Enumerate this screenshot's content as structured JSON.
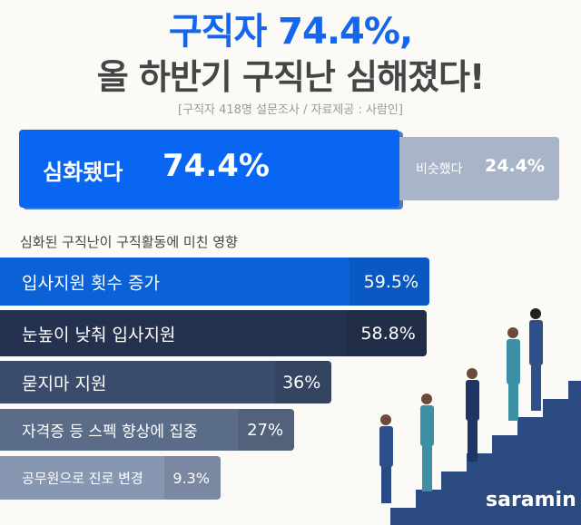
{
  "header": {
    "title_line1": "구직자 74.4%,",
    "title_line2": "올 하반기 구직난 심해졌다!",
    "source": "[구직자 418명 설문조사 / 자료제공 : 사람인]"
  },
  "chart_data": [
    {
      "type": "bar",
      "categories": [
        "심화됐다",
        "비슷했다"
      ],
      "values": [
        74.4,
        24.4
      ],
      "value_labels": [
        "74.4%",
        "24.4%"
      ],
      "colors": [
        "#0866f2",
        "#a8b5c9"
      ]
    },
    {
      "type": "bar",
      "orientation": "horizontal",
      "title": "심화된 구직난이 구직활동에 미친 영향",
      "categories": [
        "입사지원 횟수 증가",
        "눈높이 낮춰 입사지원",
        "묻지마 지원",
        "자격증 등 스펙 향상에 집중",
        "공무원으로 진로 변경"
      ],
      "values": [
        59.5,
        58.8,
        36,
        27,
        9.3
      ],
      "value_labels": [
        "59.5%",
        "58.8%",
        "36%",
        "27%",
        "9.3%"
      ],
      "colors": [
        "#0b62d6",
        "#25324f",
        "#3a4b6b",
        "#5b6c88",
        "#8797b1"
      ]
    }
  ],
  "brand": {
    "logo": "saramin"
  }
}
